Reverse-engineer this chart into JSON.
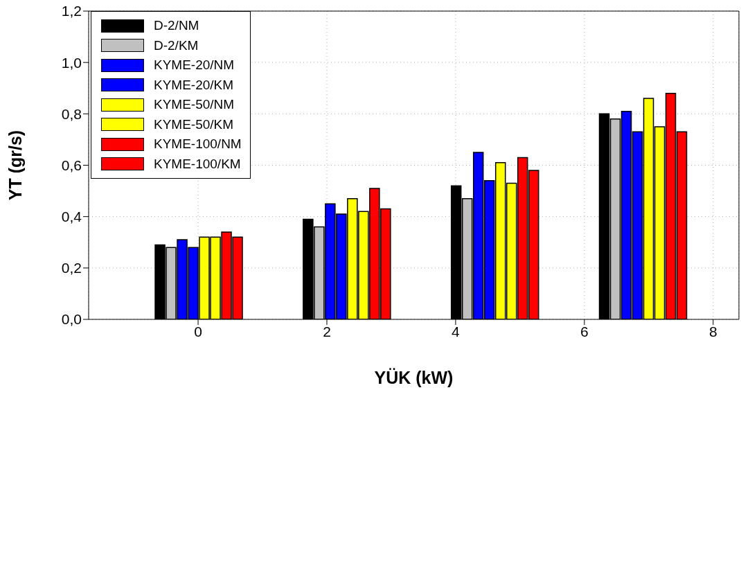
{
  "chart_data": {
    "type": "bar",
    "xlabel": "YÜK (kW)",
    "ylabel": "YT (gr/s)",
    "x": [
      0,
      2.3,
      4.6,
      6.9
    ],
    "series": [
      {
        "name": "D-2/NM",
        "color": "#000000",
        "values": [
          0.29,
          0.39,
          0.52,
          0.8
        ]
      },
      {
        "name": "D-2/KM",
        "color": "#c0c0c0",
        "values": [
          0.28,
          0.36,
          0.47,
          0.78
        ]
      },
      {
        "name": "KYME-20/NM",
        "color": "#0000ff",
        "values": [
          0.31,
          0.45,
          0.65,
          0.81
        ]
      },
      {
        "name": "KYME-20/KM",
        "color": "#0000ff",
        "values": [
          0.28,
          0.41,
          0.54,
          0.73
        ]
      },
      {
        "name": "KYME-50/NM",
        "color": "#ffff00",
        "values": [
          0.32,
          0.47,
          0.61,
          0.86
        ]
      },
      {
        "name": "KYME-50/KM",
        "color": "#ffff00",
        "values": [
          0.32,
          0.42,
          0.53,
          0.75
        ]
      },
      {
        "name": "KYME-100/NM",
        "color": "#ff0000",
        "values": [
          0.34,
          0.51,
          0.63,
          0.88
        ]
      },
      {
        "name": "KYME-100/KM",
        "color": "#ff0000",
        "values": [
          0.32,
          0.43,
          0.58,
          0.73
        ]
      }
    ],
    "xlim": [
      -1.7,
      8.4
    ],
    "xticks": [
      0,
      2,
      4,
      6,
      8
    ],
    "ylim": [
      0,
      1.2
    ],
    "yticks": [
      {
        "value": 0,
        "label": "0,0"
      },
      {
        "value": 0.2,
        "label": "0,2"
      },
      {
        "value": 0.4,
        "label": "0,4"
      },
      {
        "value": 0.6,
        "label": "0,6"
      },
      {
        "value": 0.8,
        "label": "0,8"
      },
      {
        "value": 1.0,
        "label": "1,0"
      },
      {
        "value": 1.2,
        "label": "1,2"
      }
    ],
    "grid": true,
    "legend": "top left"
  }
}
